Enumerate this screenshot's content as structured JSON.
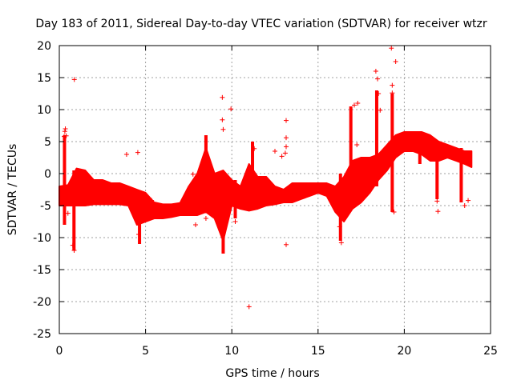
{
  "chart_data": {
    "type": "scatter",
    "title": "Day 183 of 2011, Sidereal Day-to-day VTEC variation (SDTVAR) for receiver wtzr",
    "xlabel": "GPS time / hours",
    "ylabel": "SDTVAR / TECUs",
    "xlim": [
      0,
      25
    ],
    "ylim": [
      -25,
      20
    ],
    "xticks": [
      0,
      5,
      10,
      15,
      20,
      25
    ],
    "yticks": [
      -25,
      -20,
      -15,
      -10,
      -5,
      0,
      5,
      10,
      15,
      20
    ],
    "grid": true,
    "marker": "+",
    "color": "#ff0000",
    "band": {
      "x": [
        0.0,
        0.5,
        1.0,
        1.5,
        2.0,
        2.5,
        3.0,
        3.5,
        4.0,
        4.5,
        5.0,
        5.5,
        6.0,
        6.5,
        7.0,
        7.5,
        8.0,
        8.5,
        9.0,
        9.5,
        10.0,
        10.5,
        11.0,
        11.5,
        12.0,
        12.5,
        13.0,
        13.5,
        14.0,
        14.5,
        15.0,
        15.5,
        16.0,
        16.5,
        17.0,
        17.5,
        18.0,
        18.5,
        19.0,
        19.5,
        20.0,
        20.5,
        21.0,
        21.5,
        22.0,
        22.5,
        23.0,
        23.5,
        23.9
      ],
      "upper": [
        -2.0,
        -1.8,
        0.8,
        0.5,
        -1.0,
        -1.0,
        -1.5,
        -1.5,
        -2.0,
        -2.5,
        -3.0,
        -4.5,
        -4.8,
        -4.8,
        -4.6,
        -2.0,
        0.0,
        4.0,
        0.0,
        0.5,
        -1.0,
        -2.0,
        1.5,
        -0.5,
        -0.5,
        -2.0,
        -2.5,
        -1.5,
        -1.5,
        -1.5,
        -1.5,
        -1.5,
        -2.0,
        -0.5,
        2.0,
        2.5,
        2.5,
        3.0,
        4.5,
        6.0,
        6.5,
        6.5,
        6.5,
        6.0,
        5.0,
        4.5,
        4.0,
        3.5,
        3.5
      ],
      "lower": [
        -5.0,
        -5.0,
        -5.0,
        -5.0,
        -4.8,
        -4.8,
        -4.8,
        -4.8,
        -5.0,
        -8.0,
        -7.5,
        -7.0,
        -7.0,
        -6.8,
        -6.5,
        -6.5,
        -6.5,
        -6.0,
        -7.0,
        -10.5,
        -5.0,
        -5.5,
        -5.8,
        -5.5,
        -5.0,
        -4.8,
        -4.5,
        -4.5,
        -4.0,
        -3.5,
        -3.0,
        -3.5,
        -6.0,
        -7.5,
        -5.5,
        -4.5,
        -3.0,
        -1.0,
        0.5,
        2.5,
        3.5,
        3.5,
        3.0,
        2.0,
        2.0,
        2.5,
        2.0,
        1.5,
        1.0
      ]
    },
    "spikes": [
      [
        0.3,
        6.0,
        -8.0
      ],
      [
        0.85,
        0.5,
        -12.0
      ],
      [
        4.65,
        -4.0,
        -11.0
      ],
      [
        8.5,
        6.0,
        -5.0
      ],
      [
        9.5,
        0.0,
        -12.5
      ],
      [
        10.2,
        -1.0,
        -7.0
      ],
      [
        11.2,
        5.0,
        -4.0
      ],
      [
        16.3,
        0.0,
        -10.5
      ],
      [
        16.9,
        10.5,
        -3.0
      ],
      [
        18.4,
        13.0,
        -2.0
      ],
      [
        19.3,
        12.5,
        -6.0
      ],
      [
        20.9,
        6.5,
        1.5
      ],
      [
        21.9,
        4.5,
        -4.0
      ],
      [
        23.3,
        4.0,
        -4.5
      ]
    ],
    "points": [
      [
        0.28,
        5.8
      ],
      [
        0.32,
        6.6
      ],
      [
        0.35,
        7.0
      ],
      [
        0.4,
        5.9
      ],
      [
        0.5,
        -6.2
      ],
      [
        0.78,
        -11.2
      ],
      [
        0.86,
        -12.0
      ],
      [
        0.87,
        14.7
      ],
      [
        3.9,
        3.0
      ],
      [
        4.55,
        3.3
      ],
      [
        4.6,
        -9.5
      ],
      [
        5.35,
        -4.2
      ],
      [
        7.75,
        -0.1
      ],
      [
        7.9,
        -8.0
      ],
      [
        8.5,
        -7.0
      ],
      [
        9.45,
        11.9
      ],
      [
        9.45,
        8.4
      ],
      [
        9.5,
        6.9
      ],
      [
        9.95,
        10.1
      ],
      [
        10.2,
        -7.5
      ],
      [
        11.0,
        -20.8
      ],
      [
        11.3,
        3.9
      ],
      [
        12.5,
        3.5
      ],
      [
        12.9,
        2.7
      ],
      [
        13.1,
        3.2
      ],
      [
        13.15,
        8.3
      ],
      [
        13.15,
        5.6
      ],
      [
        13.15,
        4.2
      ],
      [
        13.15,
        -11.1
      ],
      [
        16.25,
        -8.3
      ],
      [
        16.35,
        -10.8
      ],
      [
        17.1,
        10.7
      ],
      [
        17.3,
        11.0
      ],
      [
        17.25,
        4.5
      ],
      [
        18.35,
        16.0
      ],
      [
        18.45,
        14.8
      ],
      [
        18.5,
        12.5
      ],
      [
        18.6,
        9.9
      ],
      [
        19.25,
        19.6
      ],
      [
        19.3,
        13.8
      ],
      [
        19.3,
        12.6
      ],
      [
        19.4,
        -6.0
      ],
      [
        19.5,
        17.5
      ],
      [
        21.9,
        -4.3
      ],
      [
        21.95,
        -5.9
      ],
      [
        23.5,
        -5.0
      ],
      [
        23.7,
        -4.2
      ]
    ]
  }
}
